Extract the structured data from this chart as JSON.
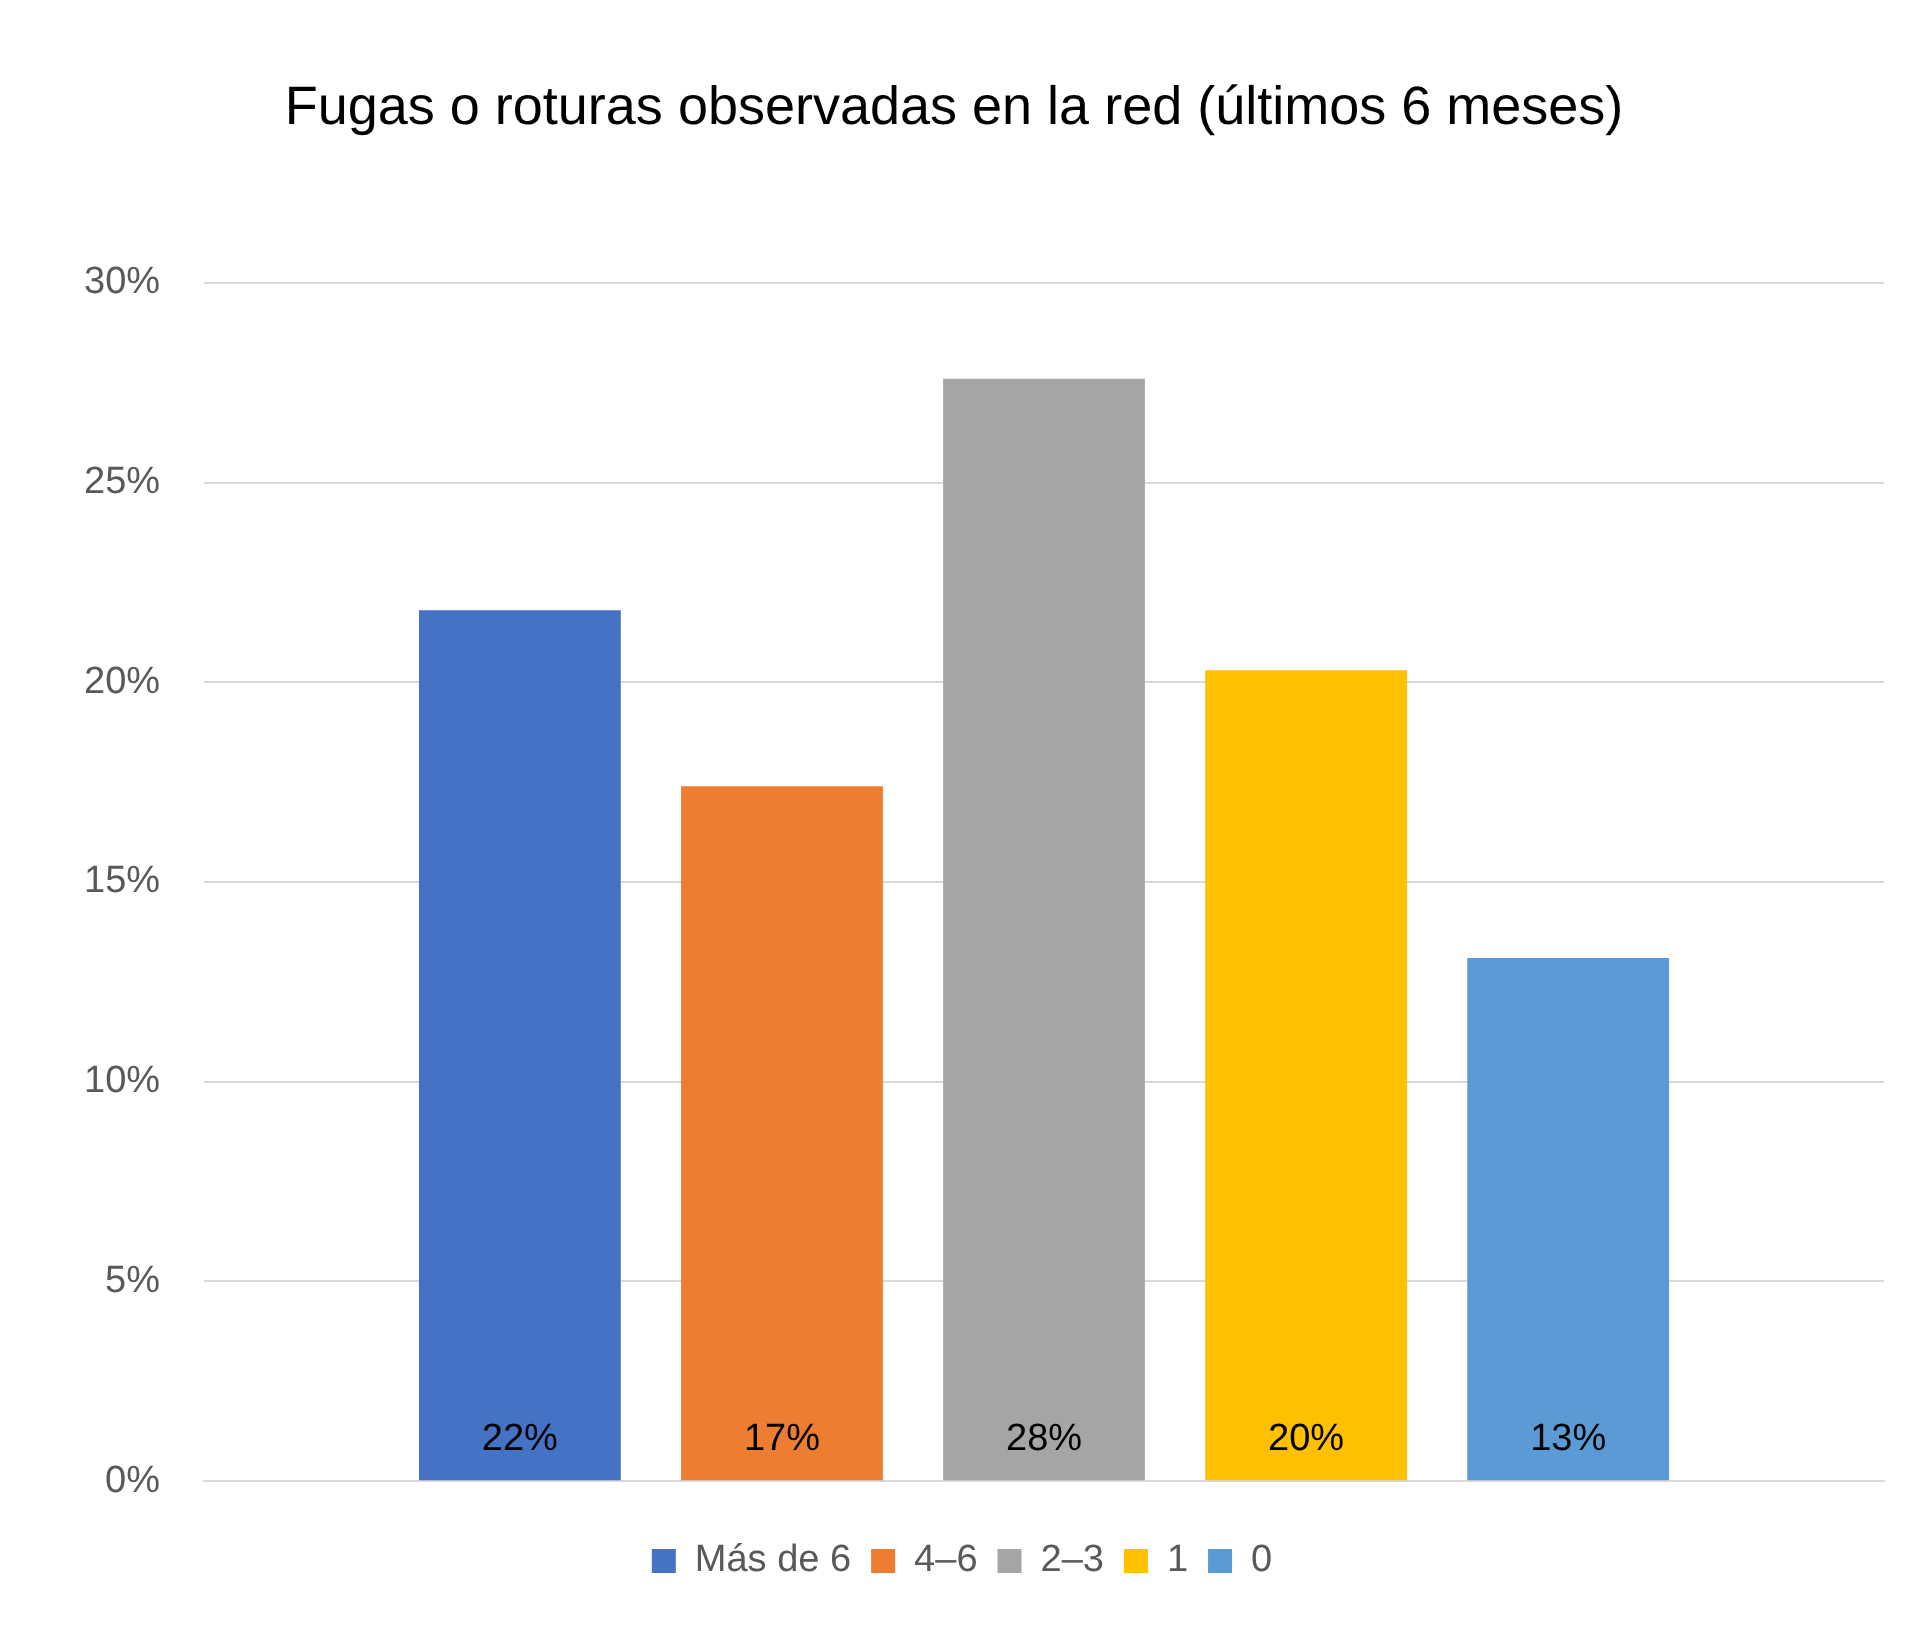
{
  "chart_data": {
    "type": "bar",
    "title": "Fugas o roturas observadas en la red (últimos 6 meses)",
    "categories": [
      null
    ],
    "series": [
      {
        "name": "Más de 6",
        "color": "#4472c4",
        "values": [
          21.8
        ],
        "value_labels": [
          "22%"
        ]
      },
      {
        "name": "4–6",
        "color": "#ed7d31",
        "values": [
          17.4
        ],
        "value_labels": [
          "17%"
        ]
      },
      {
        "name": "2–3",
        "color": "#a5a5a5",
        "values": [
          27.6
        ],
        "value_labels": [
          "28%"
        ]
      },
      {
        "name": "1",
        "color": "#ffc000",
        "values": [
          20.3
        ],
        "value_labels": [
          "20%"
        ]
      },
      {
        "name": "0",
        "color": "#5b9bd5",
        "values": [
          13.1
        ],
        "value_labels": [
          "13%"
        ]
      }
    ],
    "ylim": [
      0,
      30
    ],
    "yticks": [
      {
        "value": 0,
        "label": "0%"
      },
      {
        "value": 5,
        "label": "5%"
      },
      {
        "value": 10,
        "label": "10%"
      },
      {
        "value": 15,
        "label": "15%"
      },
      {
        "value": 20,
        "label": "20%"
      },
      {
        "value": 25,
        "label": "25%"
      },
      {
        "value": 30,
        "label": "30%"
      }
    ],
    "grid": "y",
    "legend": "bottom"
  }
}
